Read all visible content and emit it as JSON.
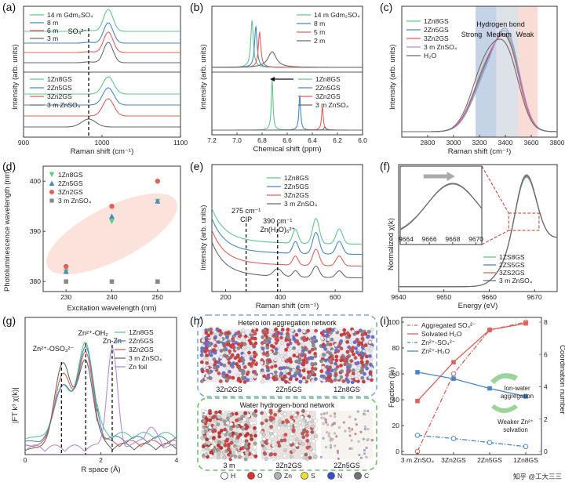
{
  "panel_labels": [
    "(a)",
    "(b)",
    "(c)",
    "(d)",
    "(e)",
    "(f)",
    "(g)",
    "(h)",
    "(i)"
  ],
  "colors": {
    "green": "#5fc98a",
    "blue": "#4a86c6",
    "red": "#e0605a",
    "gray": "#6a6a6a",
    "purple": "#b58be0",
    "shade_blue": "#c5d3e6",
    "shade_gray": "#dde2e8",
    "shade_pink": "#f9dcd6",
    "ellipse": "#fbe3dc"
  },
  "chart_data": [
    {
      "panel": "a",
      "type": "line",
      "xlabel": "Raman shift (cm⁻¹)",
      "ylabel": "Intensity (arb. units)",
      "xlim": [
        900,
        1100
      ],
      "xticks": [
        900,
        1000,
        1100
      ],
      "annotation": "SO₄²⁻",
      "series_top": [
        {
          "name": "14 m Gdm₂SO₄",
          "color": "#5fc98a",
          "peak": 1008
        },
        {
          "name": "8 m",
          "color": "#4a86c6",
          "peak": 1008
        },
        {
          "name": "6 m",
          "color": "#e0605a",
          "peak": 1008
        },
        {
          "name": "3 m",
          "color": "#6a6a6a",
          "peak": 1008
        }
      ],
      "series_bottom": [
        {
          "name": "1Zn8GS",
          "color": "#5fc98a",
          "peak": 1008
        },
        {
          "name": "2Zn5GS",
          "color": "#4a86c6",
          "peak": 1008
        },
        {
          "name": "3Zn2GS",
          "color": "#e0605a",
          "peak": 1008
        },
        {
          "name": "3 m ZnSO₄",
          "color": "#6a6a6a",
          "peak": 983
        }
      ]
    },
    {
      "panel": "b",
      "type": "line",
      "xlabel": "Chemical shift (ppm)",
      "ylabel": "Intensity (arb. units)",
      "xlim": [
        7.2,
        6.0
      ],
      "xticks": [
        7.2,
        7.0,
        6.8,
        6.6,
        6.4,
        6.2,
        6.0
      ],
      "series_top": [
        {
          "name": "14 m Gdm₂SO₄",
          "color": "#5fc98a",
          "peak": 6.88
        },
        {
          "name": "8 m",
          "color": "#4a86c6",
          "peak": 6.85
        },
        {
          "name": "5 m",
          "color": "#e0605a",
          "peak": 6.82
        },
        {
          "name": "2 m",
          "color": "#6a6a6a",
          "peak": 6.72
        }
      ],
      "series_bottom": [
        {
          "name": "1Zn8GS",
          "color": "#5fc98a",
          "peak": 6.72
        },
        {
          "name": "2Zn5GS",
          "color": "#4a86c6",
          "peak": 6.5
        },
        {
          "name": "3Zn2GS",
          "color": "#e0605a",
          "peak": 6.32
        },
        {
          "name": "3 m ZnSO₄",
          "color": "#6a6a6a",
          "peak": 6.3
        }
      ]
    },
    {
      "panel": "c",
      "type": "line",
      "xlabel": "Raman shift (cm⁻¹)",
      "ylabel": "Intensity (arb. units)",
      "xlim": [
        2600,
        3800
      ],
      "xticks": [
        2800,
        3000,
        3200,
        3400,
        3600,
        3800
      ],
      "title": "Hydrogen bond",
      "regions": [
        "Strong",
        "Medium",
        "Weak"
      ],
      "series": [
        {
          "name": "1Zn8GS",
          "color": "#5fc98a"
        },
        {
          "name": "2Zn5GS",
          "color": "#4a86c6"
        },
        {
          "name": "3Zn2GS",
          "color": "#e0605a"
        },
        {
          "name": "3 m ZnSO₄",
          "color": "#b58be0"
        },
        {
          "name": "H₂O",
          "color": "#6a6a6a"
        }
      ]
    },
    {
      "panel": "d",
      "type": "scatter",
      "xlabel": "Excitation wavelength (nm)",
      "ylabel": "Photoluminescence wavelength (nm)",
      "xlim": [
        225,
        255
      ],
      "ylim": [
        378,
        403
      ],
      "xticks": [
        230,
        240,
        250
      ],
      "yticks": [
        380,
        390,
        400
      ],
      "series": [
        {
          "name": "1Zn8GS",
          "color": "#5fc98a",
          "marker": "triangle-down",
          "points": [
            [
              230,
              382
            ],
            [
              240,
              392
            ],
            [
              250,
              396
            ]
          ]
        },
        {
          "name": "2Zn5GS",
          "color": "#4a86c6",
          "marker": "triangle-up",
          "points": [
            [
              230,
              382
            ],
            [
              240,
              393
            ],
            [
              250,
              396
            ]
          ]
        },
        {
          "name": "3Zn2GS",
          "color": "#e0605a",
          "marker": "circle",
          "points": [
            [
              230,
              383
            ],
            [
              240,
              395
            ],
            [
              250,
              400
            ]
          ]
        },
        {
          "name": "3 m ZnSO₄",
          "color": "#888888",
          "marker": "square",
          "points": [
            [
              230,
              380
            ],
            [
              240,
              380
            ],
            [
              250,
              380
            ]
          ]
        }
      ]
    },
    {
      "panel": "e",
      "type": "line",
      "xlabel": "Raman shift (cm⁻¹)",
      "ylabel": "Intensity (arb. units)",
      "xlim": [
        150,
        700
      ],
      "xticks": [
        200,
        400,
        600
      ],
      "annotations": [
        "275 cm⁻¹",
        "CIP",
        "390 cm⁻¹",
        "Zn(H₂O)₆²⁺"
      ],
      "series": [
        {
          "name": "1Zn8GS",
          "color": "#5fc98a"
        },
        {
          "name": "2Zn5GS",
          "color": "#4a86c6"
        },
        {
          "name": "3Zn2GS",
          "color": "#e0605a"
        },
        {
          "name": "3 m ZnSO₄",
          "color": "#6a6a6a"
        }
      ]
    },
    {
      "panel": "f",
      "type": "line",
      "xlabel": "Energy (eV)",
      "ylabel": "Normalized χ(k)",
      "xlim": [
        9640,
        9675
      ],
      "xticks": [
        9640,
        9650,
        9660,
        9670
      ],
      "inset_xticks": [
        9664,
        9666,
        9668,
        9670
      ],
      "series": [
        {
          "name": "1ZS8GS",
          "color": "#5fc98a"
        },
        {
          "name": "2ZS5GS",
          "color": "#4a86c6"
        },
        {
          "name": "3ZS2GS",
          "color": "#e0605a"
        },
        {
          "name": "3 m ZnSO₄",
          "color": "#6a6a6a"
        }
      ]
    },
    {
      "panel": "g",
      "type": "line",
      "xlabel": "R space (Å)",
      "ylabel": "|FT k³ χ(k)|",
      "xlim": [
        0,
        4
      ],
      "xticks": [
        0,
        2,
        4
      ],
      "annotations": [
        "Zn²⁺-OSO₃²⁻",
        "Zn²⁺-OH₂",
        "Zn-Zn"
      ],
      "series": [
        {
          "name": "1Zn8GS",
          "color": "#5fc98a"
        },
        {
          "name": "2Zn5GS",
          "color": "#4a86c6"
        },
        {
          "name": "3Zn2GS",
          "color": "#e0605a"
        },
        {
          "name": "3 m ZnSO₄",
          "color": "#6a6a6a"
        },
        {
          "name": "Zn foil",
          "color": "#b58be0"
        }
      ]
    },
    {
      "panel": "i",
      "type": "line",
      "categories": [
        "3 m ZnSO₄",
        "3Zn2GS",
        "2Zn5GS",
        "1Zn8GS"
      ],
      "ylabel": "Fraction (%)",
      "y2label": "Coordination number",
      "ylim": [
        0,
        100
      ],
      "yticks": [
        0,
        20,
        40,
        60,
        80,
        100
      ],
      "y2lim": [
        0,
        8
      ],
      "y2ticks": [
        0,
        2,
        4,
        6,
        8
      ],
      "series": [
        {
          "name": "Aggregated SO₄²⁻",
          "color": "#e0605a",
          "axis": "left",
          "style": "dashdot",
          "marker": "open-circle",
          "values": [
            0,
            60,
            94,
            100
          ]
        },
        {
          "name": "Solvated H₂O",
          "color": "#e0605a",
          "axis": "left",
          "style": "solid",
          "marker": "square",
          "values": [
            39,
            69,
            94,
            99
          ]
        },
        {
          "name": "Zn²⁺-SO₄²⁻",
          "color": "#4a86c6",
          "axis": "right",
          "style": "dashdot",
          "marker": "open-circle",
          "values": [
            1.0,
            0.8,
            0.55,
            0.3
          ]
        },
        {
          "name": "Zn²⁺-H₂O",
          "color": "#4a86c6",
          "axis": "right",
          "style": "solid",
          "marker": "square",
          "values": [
            4.9,
            4.5,
            3.9,
            3.4
          ]
        }
      ],
      "annotations": [
        "Ion-water aggregation",
        "Weaker Zn²⁺ solvation"
      ]
    }
  ],
  "panel_h": {
    "top_title": "Hetero ion aggregation network",
    "bottom_title": "Water hydrogen-bond network",
    "top_labels": [
      "3Zn2GS",
      "2Zn5GS",
      "1Zn8GS"
    ],
    "bottom_labels": [
      "3 m",
      "3Zn2GS",
      "2Zn5GS"
    ],
    "atoms": [
      {
        "sym": "H",
        "color": "#ffffff"
      },
      {
        "sym": "O",
        "color": "#e03030"
      },
      {
        "sym": "Zn",
        "color": "#b0b0b0"
      },
      {
        "sym": "S",
        "color": "#f0e020"
      },
      {
        "sym": "N",
        "color": "#3050d0"
      },
      {
        "sym": "C",
        "color": "#707070"
      }
    ]
  },
  "watermark": "知乎 @工大三三"
}
